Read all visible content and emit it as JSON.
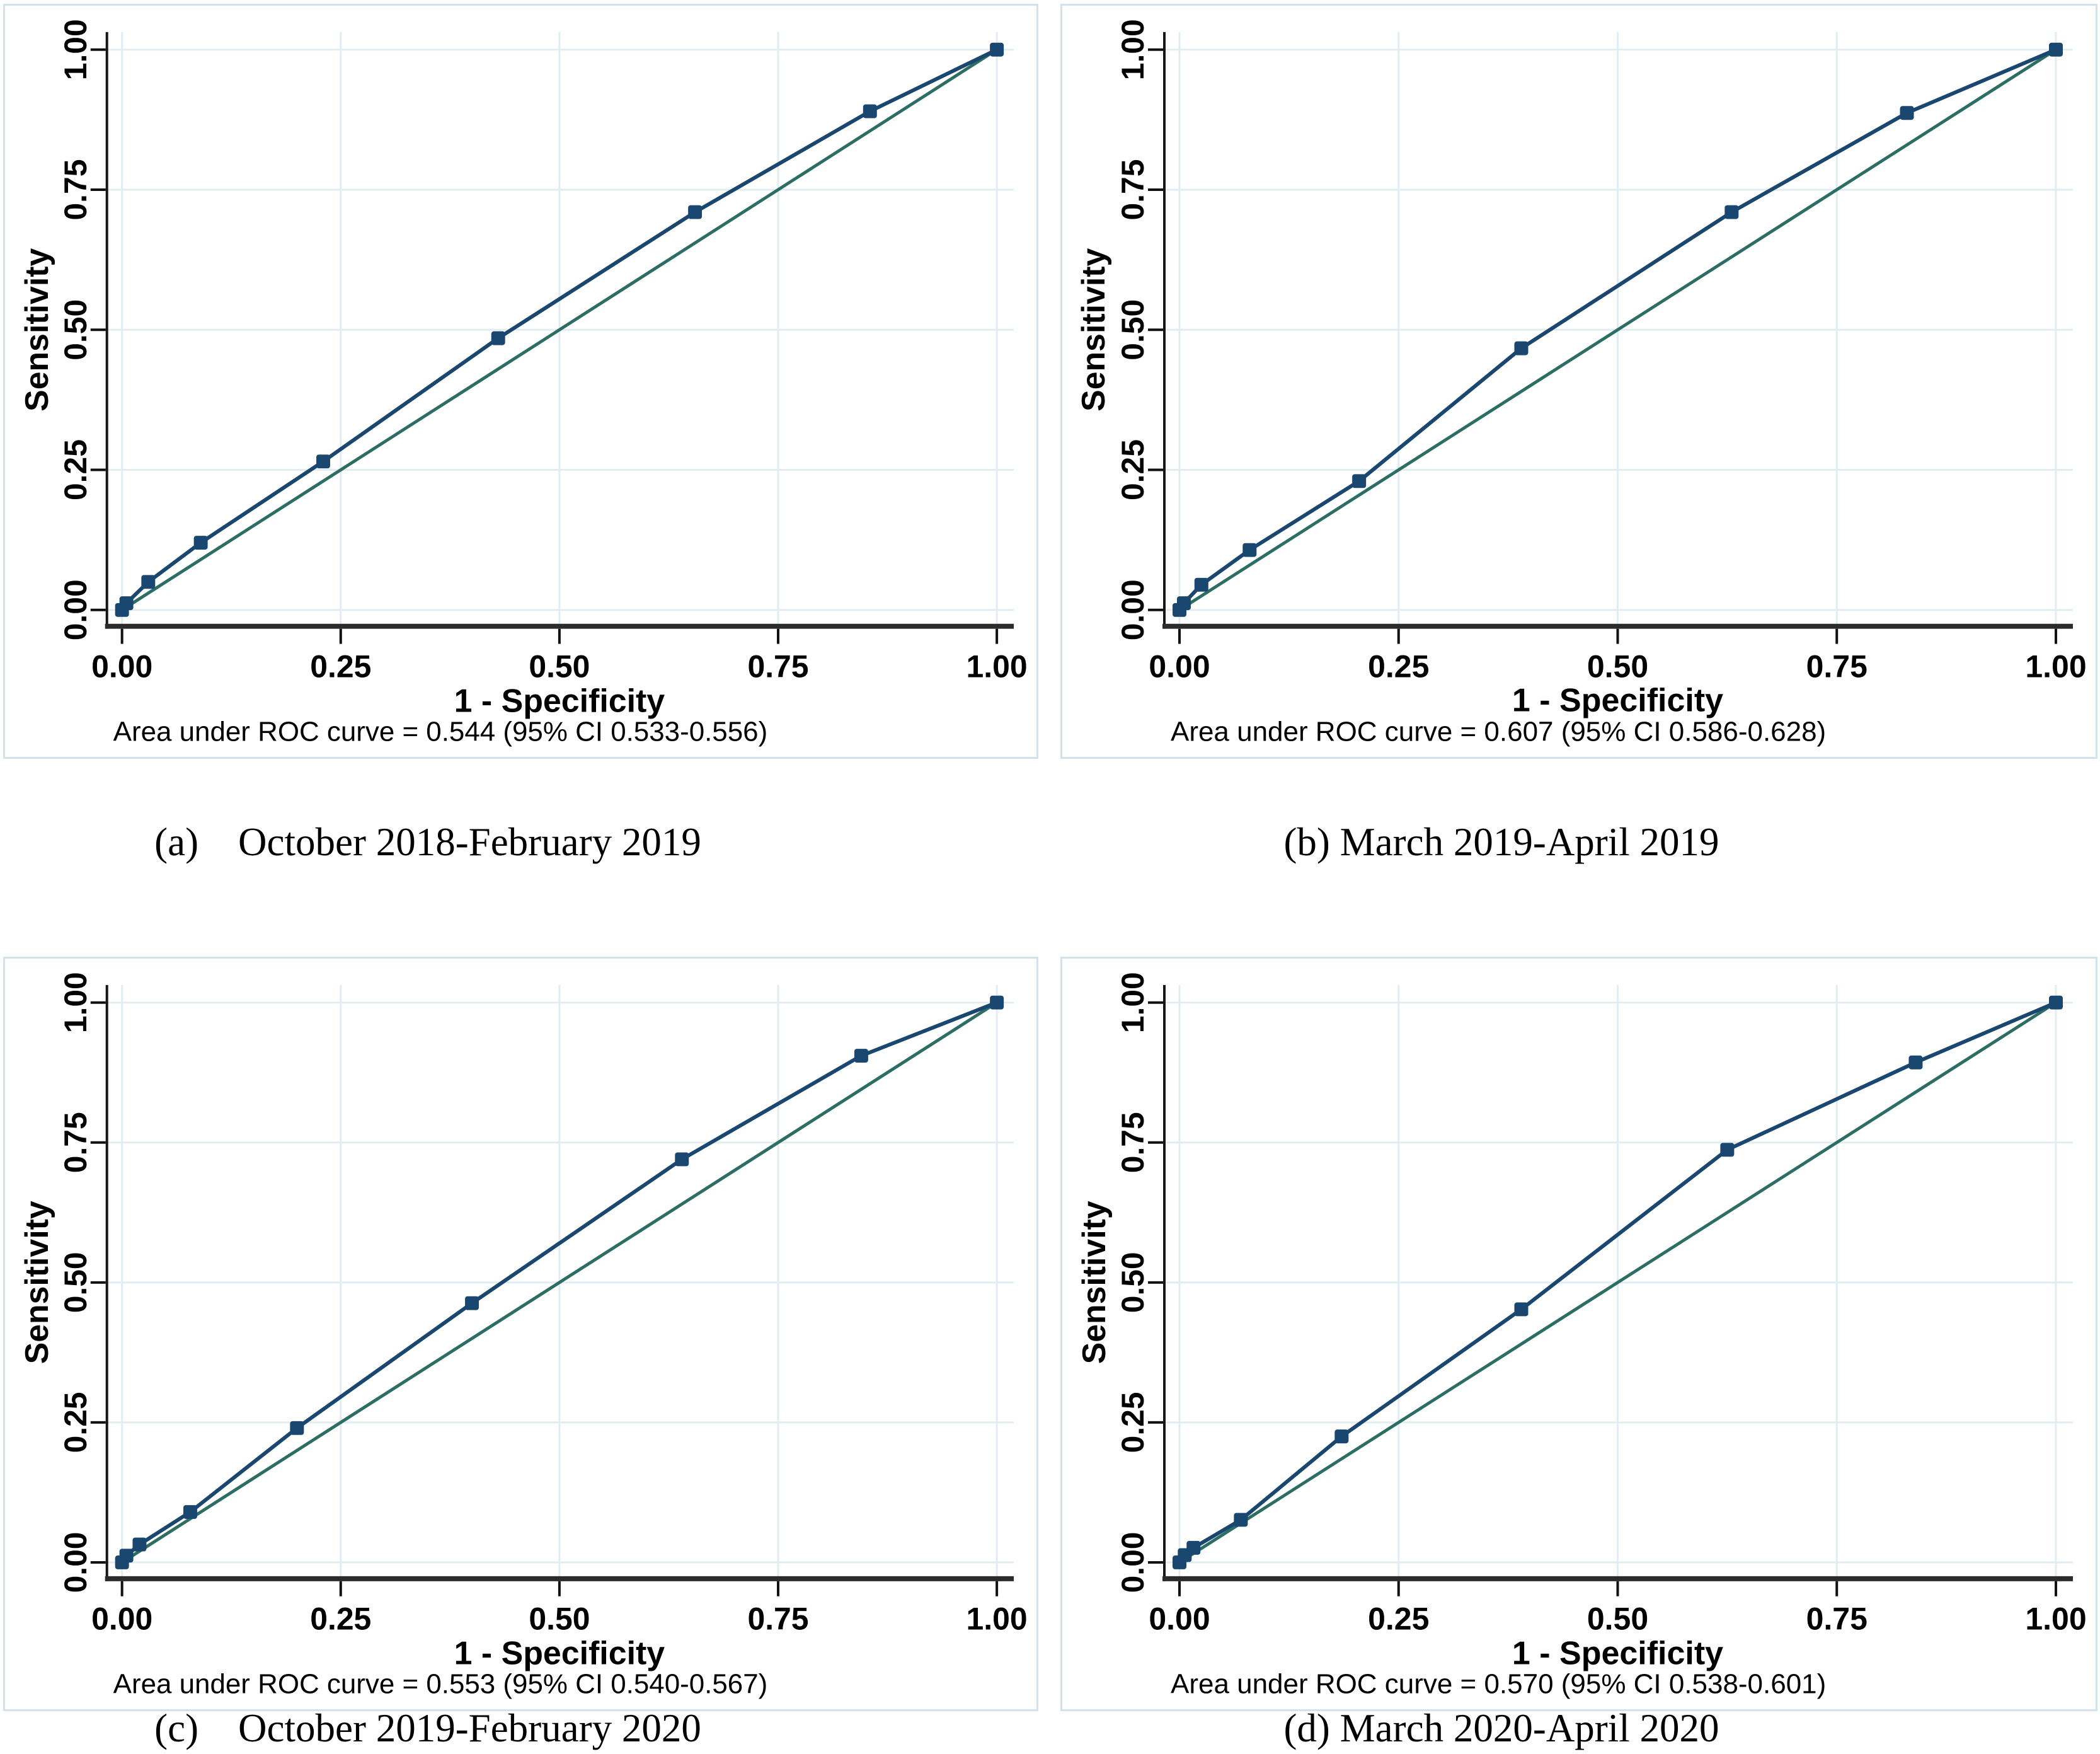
{
  "colors": {
    "roc_line": "#1a476f",
    "reference_line": "#2c6e63",
    "grid": "#e2edf1",
    "y_axis": "#161616",
    "x_axis": "#2b2b2b",
    "tick": "#111111",
    "text": "#000000",
    "panel_border": "#d2e2ea",
    "plot_background": "#ffffff"
  },
  "captions": [
    {
      "id": "a",
      "text": "(a) October 2018-February 2019"
    },
    {
      "id": "b",
      "text": "(b) March 2019-April 2019"
    },
    {
      "id": "c",
      "text": "(c) October 2019-February 2020"
    },
    {
      "id": "d",
      "text": "(d) March 2020-April 2020"
    }
  ],
  "chart_data": [
    {
      "type": "line",
      "panel": "a",
      "xlabel": "1 - Specificity",
      "ylabel": "Sensitivity",
      "note": "Area under ROC curve = 0.544 (95% CI 0.533-0.556)",
      "auc": 0.544,
      "ci_low": 0.533,
      "ci_high": 0.556,
      "xlim": [
        0,
        1
      ],
      "ylim": [
        0,
        1
      ],
      "grid": true,
      "x_ticks": {
        "values": [
          0,
          0.25,
          0.5,
          0.75,
          1
        ],
        "labels": [
          "0.00",
          "0.25",
          "0.50",
          "0.75",
          "1.00"
        ]
      },
      "y_ticks": {
        "values": [
          0,
          0.25,
          0.5,
          0.75,
          1
        ],
        "labels": [
          "0.00",
          "0.25",
          "0.50",
          "0.75",
          "1.00"
        ]
      },
      "series": [
        {
          "name": "reference",
          "markers": false,
          "points": [
            [
              0,
              0
            ],
            [
              1,
              1
            ]
          ]
        },
        {
          "name": "roc",
          "markers": true,
          "points": [
            [
              0,
              0
            ],
            [
              0.005,
              0.012
            ],
            [
              0.03,
              0.05
            ],
            [
              0.09,
              0.12
            ],
            [
              0.23,
              0.265
            ],
            [
              0.43,
              0.485
            ],
            [
              0.655,
              0.71
            ],
            [
              0.855,
              0.89
            ],
            [
              1,
              1
            ]
          ]
        }
      ]
    },
    {
      "type": "line",
      "panel": "b",
      "xlabel": "1 - Specificity",
      "ylabel": "Sensitivity",
      "note": "Area under ROC curve = 0.607 (95% CI 0.586-0.628)",
      "auc": 0.607,
      "ci_low": 0.586,
      "ci_high": 0.628,
      "xlim": [
        0,
        1
      ],
      "ylim": [
        0,
        1
      ],
      "grid": true,
      "x_ticks": {
        "values": [
          0,
          0.25,
          0.5,
          0.75,
          1
        ],
        "labels": [
          "0.00",
          "0.25",
          "0.50",
          "0.75",
          "1.00"
        ]
      },
      "y_ticks": {
        "values": [
          0,
          0.25,
          0.5,
          0.75,
          1
        ],
        "labels": [
          "0.00",
          "0.25",
          "0.50",
          "0.75",
          "1.00"
        ]
      },
      "series": [
        {
          "name": "reference",
          "markers": false,
          "points": [
            [
              0,
              0
            ],
            [
              1,
              1
            ]
          ]
        },
        {
          "name": "roc",
          "markers": true,
          "points": [
            [
              0,
              0
            ],
            [
              0.005,
              0.012
            ],
            [
              0.025,
              0.045
            ],
            [
              0.08,
              0.107
            ],
            [
              0.205,
              0.23
            ],
            [
              0.39,
              0.467
            ],
            [
              0.63,
              0.71
            ],
            [
              0.83,
              0.887
            ],
            [
              1,
              1
            ]
          ]
        }
      ]
    },
    {
      "type": "line",
      "panel": "c",
      "xlabel": "1 - Specificity",
      "ylabel": "Sensitivity",
      "note": "Area under ROC curve = 0.553 (95% CI 0.540-0.567)",
      "auc": 0.553,
      "ci_low": 0.54,
      "ci_high": 0.567,
      "xlim": [
        0,
        1
      ],
      "ylim": [
        0,
        1
      ],
      "grid": true,
      "x_ticks": {
        "values": [
          0,
          0.25,
          0.5,
          0.75,
          1
        ],
        "labels": [
          "0.00",
          "0.25",
          "0.50",
          "0.75",
          "1.00"
        ]
      },
      "y_ticks": {
        "values": [
          0,
          0.25,
          0.5,
          0.75,
          1
        ],
        "labels": [
          "0.00",
          "0.25",
          "0.50",
          "0.75",
          "1.00"
        ]
      },
      "series": [
        {
          "name": "reference",
          "markers": false,
          "points": [
            [
              0,
              0
            ],
            [
              1,
              1
            ]
          ]
        },
        {
          "name": "roc",
          "markers": true,
          "points": [
            [
              0,
              0
            ],
            [
              0.005,
              0.012
            ],
            [
              0.02,
              0.032
            ],
            [
              0.078,
              0.09
            ],
            [
              0.2,
              0.24
            ],
            [
              0.4,
              0.463
            ],
            [
              0.64,
              0.72
            ],
            [
              0.845,
              0.905
            ],
            [
              1,
              1
            ]
          ]
        }
      ]
    },
    {
      "type": "line",
      "panel": "d",
      "xlabel": "1 - Specificity",
      "ylabel": "Sensitivity",
      "note": "Area under ROC curve = 0.570 (95% CI 0.538-0.601)",
      "auc": 0.57,
      "ci_low": 0.538,
      "ci_high": 0.601,
      "xlim": [
        0,
        1
      ],
      "ylim": [
        0,
        1
      ],
      "grid": true,
      "x_ticks": {
        "values": [
          0,
          0.25,
          0.5,
          0.75,
          1
        ],
        "labels": [
          "0.00",
          "0.25",
          "0.50",
          "0.75",
          "1.00"
        ]
      },
      "y_ticks": {
        "values": [
          0,
          0.25,
          0.5,
          0.75,
          1
        ],
        "labels": [
          "0.00",
          "0.25",
          "0.50",
          "0.75",
          "1.00"
        ]
      },
      "series": [
        {
          "name": "reference",
          "markers": false,
          "points": [
            [
              0,
              0
            ],
            [
              1,
              1
            ]
          ]
        },
        {
          "name": "roc",
          "markers": true,
          "points": [
            [
              0,
              0
            ],
            [
              0.006,
              0.013
            ],
            [
              0.016,
              0.026
            ],
            [
              0.07,
              0.076
            ],
            [
              0.185,
              0.225
            ],
            [
              0.39,
              0.452
            ],
            [
              0.625,
              0.737
            ],
            [
              0.84,
              0.893
            ],
            [
              1,
              1
            ]
          ]
        }
      ]
    }
  ]
}
